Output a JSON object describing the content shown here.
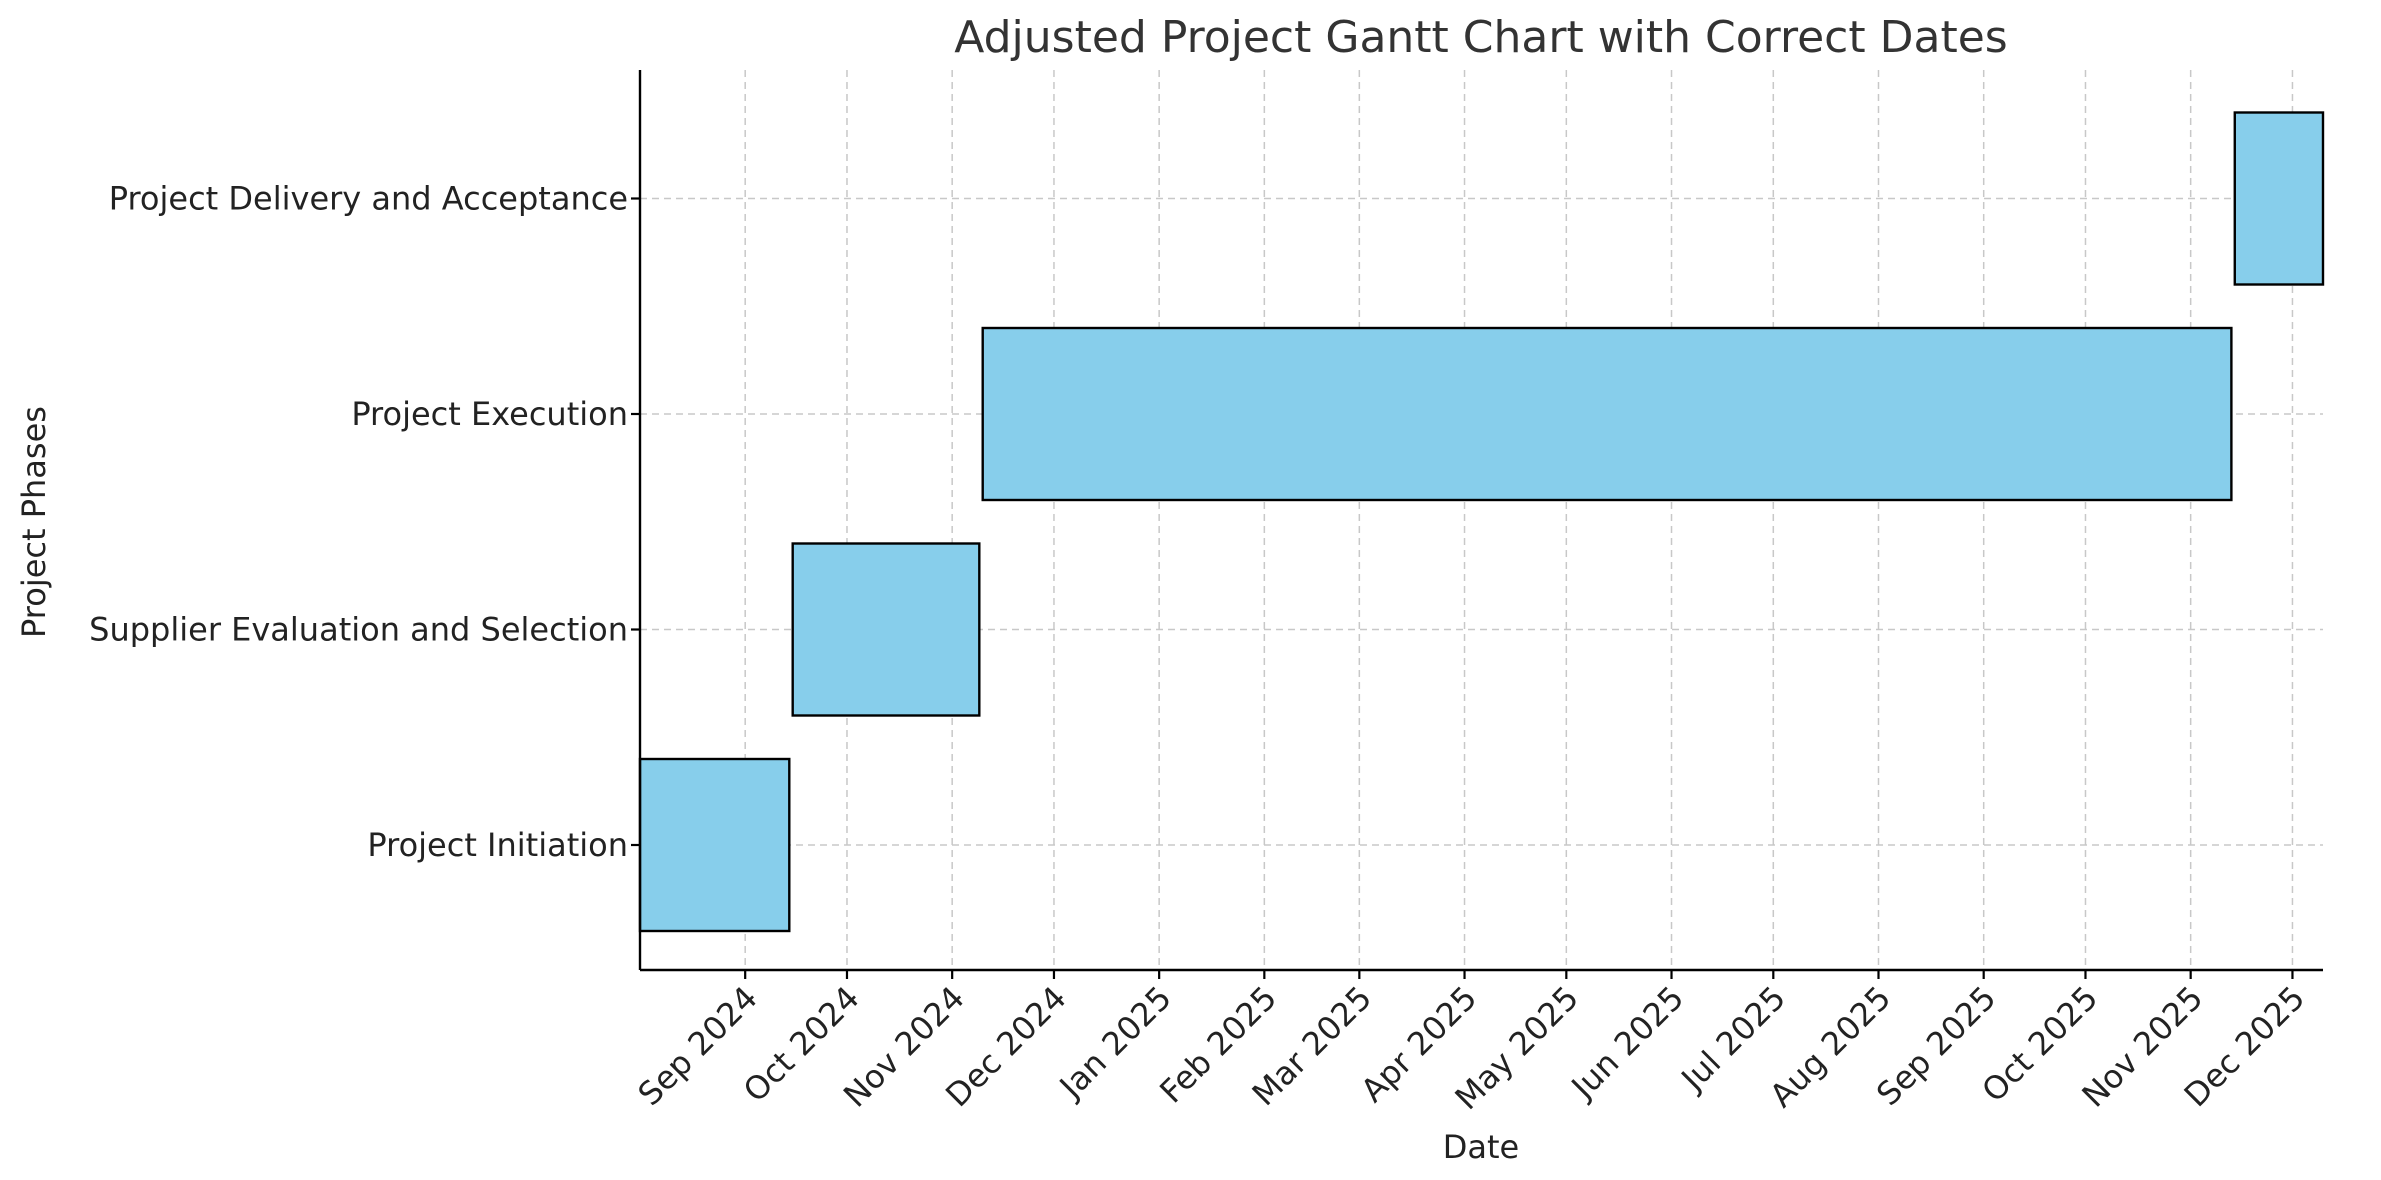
{
  "chart_data": {
    "type": "bar",
    "orientation": "horizontal-gantt",
    "title": "Adjusted Project Gantt Chart with Correct Dates",
    "xlabel": "Date",
    "ylabel": "Project Phases",
    "xlim": [
      "2024-08-01",
      "2025-12-10"
    ],
    "categories": [
      "Project Initiation",
      "Supplier Evaluation and Selection",
      "Project Execution",
      "Project Delivery and Acceptance"
    ],
    "tasks": [
      {
        "name": "Project Initiation",
        "start": "2024-08-01",
        "end": "2024-09-14"
      },
      {
        "name": "Supplier Evaluation and Selection",
        "start": "2024-09-15",
        "end": "2024-11-09"
      },
      {
        "name": "Project Execution",
        "start": "2024-11-10",
        "end": "2025-11-13"
      },
      {
        "name": "Project Delivery and Acceptance",
        "start": "2025-11-14",
        "end": "2025-12-10"
      }
    ],
    "x_ticks": [
      {
        "date": "2024-09-01",
        "label": "Sep 2024"
      },
      {
        "date": "2024-10-01",
        "label": "Oct 2024"
      },
      {
        "date": "2024-11-01",
        "label": "Nov 2024"
      },
      {
        "date": "2024-12-01",
        "label": "Dec 2024"
      },
      {
        "date": "2025-01-01",
        "label": "Jan 2025"
      },
      {
        "date": "2025-02-01",
        "label": "Feb 2025"
      },
      {
        "date": "2025-03-01",
        "label": "Mar 2025"
      },
      {
        "date": "2025-04-01",
        "label": "Apr 2025"
      },
      {
        "date": "2025-05-01",
        "label": "May 2025"
      },
      {
        "date": "2025-06-01",
        "label": "Jun 2025"
      },
      {
        "date": "2025-07-01",
        "label": "Jul 2025"
      },
      {
        "date": "2025-08-01",
        "label": "Aug 2025"
      },
      {
        "date": "2025-09-01",
        "label": "Sep 2025"
      },
      {
        "date": "2025-10-01",
        "label": "Oct 2025"
      },
      {
        "date": "2025-11-01",
        "label": "Nov 2025"
      },
      {
        "date": "2025-12-01",
        "label": "Dec 2025"
      }
    ],
    "grid": true,
    "legend": "none",
    "colors": {
      "bar_fill": "#87CEEB",
      "bar_edge": "#000000",
      "grid": "#c8c8c8"
    }
  }
}
